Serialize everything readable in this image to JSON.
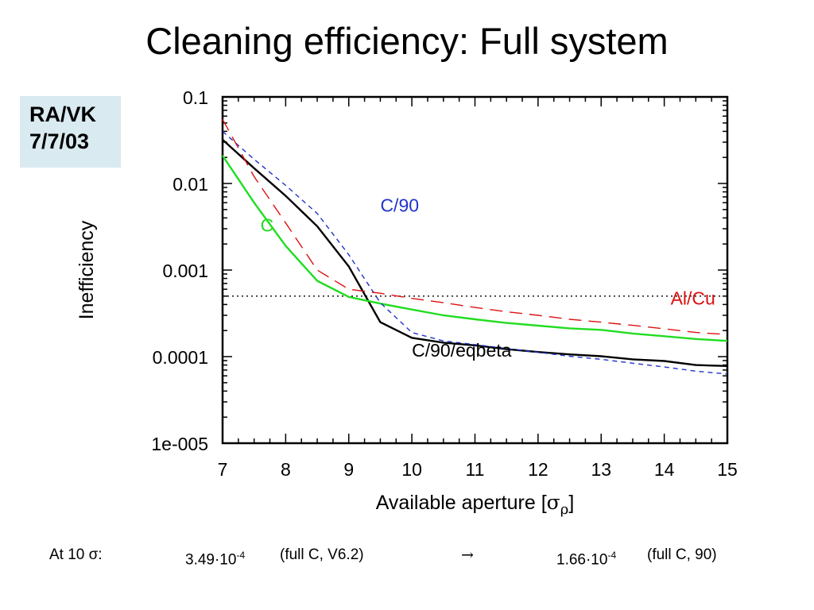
{
  "slide": {
    "title": "Cleaning efficiency: Full system",
    "author": [
      "RA/VK",
      "7/7/03"
    ]
  },
  "colors": {
    "C/90/eqbeta": "#000000",
    "C": "#22dd22",
    "C/90": "#2233cc",
    "Al/Cu": "#dd1111"
  },
  "chart_data": {
    "type": "line",
    "xlabel": "Available aperture [σρ]",
    "xlabel_parts": {
      "main": "Available aperture [",
      "symbol": "σ",
      "sub": "ρ",
      "close": "]"
    },
    "ylabel": "Inefficiency",
    "xlim": [
      7,
      15
    ],
    "ylim": [
      1e-05,
      0.1
    ],
    "yscale": "log",
    "xticks": [
      "7",
      "8",
      "9",
      "10",
      "11",
      "12",
      "13",
      "14",
      "15"
    ],
    "yticks": [
      {
        "value": 0.1,
        "label": "0.1"
      },
      {
        "value": 0.01,
        "label": "0.01"
      },
      {
        "value": 0.001,
        "label": "0.001"
      },
      {
        "value": 0.0001,
        "label": "0.0001"
      },
      {
        "value": 1e-05,
        "label": "1e-005"
      }
    ],
    "reference_line": {
      "y": 0.0005,
      "style": "dotted"
    },
    "series": [
      {
        "name": "C/90/eqbeta",
        "color": "#000000",
        "dash": "solid",
        "x": [
          7,
          7.5,
          8,
          8.5,
          9,
          9.5,
          10,
          10.5,
          11,
          11.5,
          12,
          12.5,
          13,
          13.5,
          14,
          14.5,
          15
        ],
        "y": [
          0.032,
          0.015,
          0.0072,
          0.0032,
          0.0011,
          0.00025,
          0.000165,
          0.000145,
          0.000135,
          0.000122,
          0.000113,
          0.000106,
          0.000101,
          9.3e-05,
          8.9e-05,
          8e-05,
          7.8e-05
        ]
      },
      {
        "name": "C",
        "color": "#22dd22",
        "dash": "solid",
        "x": [
          7,
          7.5,
          8,
          8.5,
          9,
          9.5,
          10,
          10.5,
          11,
          11.5,
          12,
          12.5,
          13,
          13.5,
          14,
          14.5,
          15
        ],
        "y": [
          0.021,
          0.006,
          0.0019,
          0.00075,
          0.00049,
          0.00041,
          0.00035,
          0.0003,
          0.00027,
          0.000245,
          0.000228,
          0.000212,
          0.000204,
          0.000185,
          0.000172,
          0.00016,
          0.000152
        ]
      },
      {
        "name": "C/90",
        "color": "#2233cc",
        "dash": "dashed",
        "x": [
          7,
          7.5,
          8,
          8.5,
          9,
          9.5,
          10,
          10.5,
          11,
          11.5,
          12,
          12.5,
          13,
          13.5,
          14,
          14.5,
          15
        ],
        "y": [
          0.04,
          0.019,
          0.0095,
          0.0045,
          0.0015,
          0.00042,
          0.00019,
          0.000152,
          0.000138,
          0.000124,
          0.000112,
          0.000101,
          9.3e-05,
          8.4e-05,
          7.6e-05,
          6.8e-05,
          6.3e-05
        ]
      },
      {
        "name": "Al/Cu",
        "color": "#dd1111",
        "dash": "longdash",
        "x": [
          7,
          7.5,
          8,
          8.5,
          9,
          9.5,
          10,
          10.5,
          11,
          11.5,
          12,
          12.5,
          13,
          13.5,
          14,
          14.5,
          15
        ],
        "y": [
          0.055,
          0.012,
          0.0035,
          0.001,
          0.0006,
          0.00054,
          0.00047,
          0.00042,
          0.00037,
          0.00033,
          0.0003,
          0.00027,
          0.00025,
          0.00023,
          0.00021,
          0.00019,
          0.00018
        ]
      }
    ],
    "annotations": [
      {
        "text": "C/90",
        "color": "#2233cc",
        "x": 9.5,
        "y": 0.0047
      },
      {
        "text": "C",
        "color": "#22dd22",
        "x": 7.6,
        "y": 0.0028
      },
      {
        "text": "Al/Cu",
        "color": "#dd1111",
        "x": 14.1,
        "y": 0.0004
      },
      {
        "text": "C/90/eqbeta",
        "color": "#000000",
        "x": 10.0,
        "y": 0.0001
      }
    ]
  },
  "footer": {
    "label": "At 10 σ:",
    "value1": "3.49·10",
    "exp1": "-4",
    "note1": "(full C, V6.2)",
    "arrow": "→",
    "value2": "1.66·10",
    "exp2": "-4",
    "note2": "(full C, 90)"
  }
}
